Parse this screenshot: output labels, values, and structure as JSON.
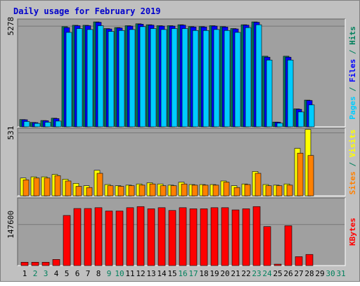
{
  "title": "Daily usage for February 2019",
  "colors": {
    "background": "#c0c0c0",
    "plot": "#a0a0a0",
    "title": "#0000cc",
    "hits": "#00805c",
    "files": "#0000ff",
    "pages": "#00ccff",
    "visits": "#ffff00",
    "sites": "#ff8000",
    "kbytes": "#ff0000",
    "weekday_label": "#000000",
    "weekend_label": "#00805c"
  },
  "chart_data": [
    {
      "type": "bar",
      "name": "pages-files-hits",
      "categories": [
        "1",
        "2",
        "3",
        "4",
        "5",
        "6",
        "7",
        "8",
        "9",
        "10",
        "11",
        "12",
        "13",
        "14",
        "15",
        "16",
        "17",
        "18",
        "19",
        "20",
        "21",
        "22",
        "23",
        "24",
        "25",
        "26",
        "27",
        "28",
        "29",
        "30",
        "31"
      ],
      "weekend_days": [
        "2",
        "3",
        "9",
        "10",
        "16",
        "17",
        "23",
        "24",
        "30",
        "31"
      ],
      "ytick_label": "5278",
      "ytick_value": 5278,
      "ylim": [
        0,
        5650
      ],
      "right_label_parts": [
        {
          "text": "Pages",
          "color_key": "pages"
        },
        {
          "text": " / ",
          "color_key": "weekend_label"
        },
        {
          "text": "Files",
          "color_key": "files"
        },
        {
          "text": " / ",
          "color_key": "weekend_label"
        },
        {
          "text": "Hits",
          "color_key": "hits"
        }
      ],
      "series": [
        {
          "name": "Hits",
          "color_key": "hits",
          "values": [
            380,
            230,
            330,
            450,
            5250,
            5320,
            5320,
            5500,
            5150,
            5200,
            5300,
            5400,
            5350,
            5300,
            5300,
            5350,
            5250,
            5250,
            5300,
            5250,
            5150,
            5350,
            5500,
            3700,
            250,
            3700,
            940,
            1400,
            0,
            0,
            0
          ]
        },
        {
          "name": "Files",
          "color_key": "files",
          "values": [
            370,
            220,
            320,
            430,
            5200,
            5300,
            5300,
            5480,
            5130,
            5180,
            5280,
            5380,
            5330,
            5280,
            5280,
            5330,
            5230,
            5230,
            5280,
            5230,
            5130,
            5330,
            5480,
            3650,
            240,
            3650,
            920,
            1380,
            0,
            0,
            0
          ]
        },
        {
          "name": "Pages",
          "color_key": "pages",
          "values": [
            280,
            180,
            240,
            300,
            4950,
            5150,
            5100,
            5300,
            5000,
            5050,
            5100,
            5250,
            5150,
            5100,
            5150,
            5150,
            5050,
            5050,
            5100,
            5050,
            4950,
            5200,
            5350,
            3500,
            190,
            3500,
            780,
            1150,
            0,
            0,
            0
          ]
        }
      ]
    },
    {
      "type": "bar",
      "name": "sites-visits",
      "categories": [
        "1",
        "2",
        "3",
        "4",
        "5",
        "6",
        "7",
        "8",
        "9",
        "10",
        "11",
        "12",
        "13",
        "14",
        "15",
        "16",
        "17",
        "18",
        "19",
        "20",
        "21",
        "22",
        "23",
        "24",
        "25",
        "26",
        "27",
        "28",
        "29",
        "30",
        "31"
      ],
      "ytick_label": "531",
      "ytick_value": 531,
      "ylim": [
        0,
        570
      ],
      "right_label_parts": [
        {
          "text": "Sites",
          "color_key": "sites"
        },
        {
          "text": " / ",
          "color_key": "weekend_label"
        },
        {
          "text": "Visits",
          "color_key": "visits"
        }
      ],
      "series": [
        {
          "name": "Visits",
          "color_key": "visits",
          "values": [
            150,
            160,
            160,
            180,
            140,
            105,
            85,
            215,
            95,
            85,
            90,
            100,
            110,
            100,
            90,
            115,
            95,
            95,
            95,
            125,
            85,
            100,
            205,
            95,
            90,
            100,
            400,
            560,
            0,
            0,
            0
          ]
        },
        {
          "name": "Sites",
          "color_key": "sites",
          "values": [
            135,
            150,
            150,
            170,
            125,
            80,
            70,
            190,
            85,
            80,
            85,
            90,
            100,
            85,
            85,
            100,
            90,
            90,
            90,
            115,
            70,
            95,
            190,
            85,
            85,
            90,
            360,
            340,
            0,
            0,
            0
          ]
        }
      ]
    },
    {
      "type": "bar",
      "name": "kbytes",
      "categories": [
        "1",
        "2",
        "3",
        "4",
        "5",
        "6",
        "7",
        "8",
        "9",
        "10",
        "11",
        "12",
        "13",
        "14",
        "15",
        "16",
        "17",
        "18",
        "19",
        "20",
        "21",
        "22",
        "23",
        "24",
        "25",
        "26",
        "27",
        "28",
        "29",
        "30",
        "31"
      ],
      "ytick_label": "147600",
      "ytick_value": 147600,
      "ylim": [
        0,
        243000
      ],
      "right_label_parts": [
        {
          "text": "KBytes",
          "color_key": "kbytes"
        }
      ],
      "series": [
        {
          "name": "KBytes",
          "color_key": "kbytes",
          "values": [
            12000,
            12000,
            12000,
            22000,
            180000,
            205000,
            205000,
            208000,
            196000,
            196000,
            208000,
            212000,
            204000,
            208000,
            198000,
            208000,
            204000,
            204000,
            208000,
            208000,
            200000,
            204000,
            212000,
            140000,
            5000,
            143000,
            32000,
            40000,
            0,
            0,
            0
          ]
        }
      ]
    }
  ]
}
